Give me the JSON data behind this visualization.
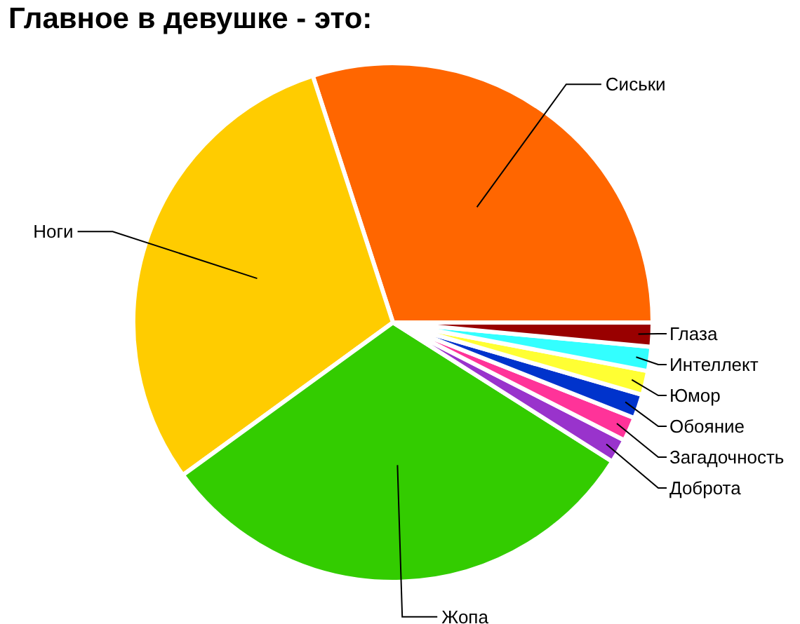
{
  "chart_data": {
    "type": "pie",
    "title": "Главное в девушке - это:",
    "categories": [
      "Сиськи",
      "Ноги",
      "Жопа",
      "Доброта",
      "Загадочность",
      "Обояние",
      "Юмор",
      "Интеллект",
      "Глаза"
    ],
    "values": [
      30,
      30,
      31,
      1.5,
      1.5,
      1.5,
      1.5,
      1.5,
      1.5
    ],
    "colors": [
      "#ff6600",
      "#ffcc00",
      "#33cc00",
      "#9933cc",
      "#ff3399",
      "#0033cc",
      "#ffff33",
      "#33ffff",
      "#990000"
    ],
    "legend": false
  }
}
